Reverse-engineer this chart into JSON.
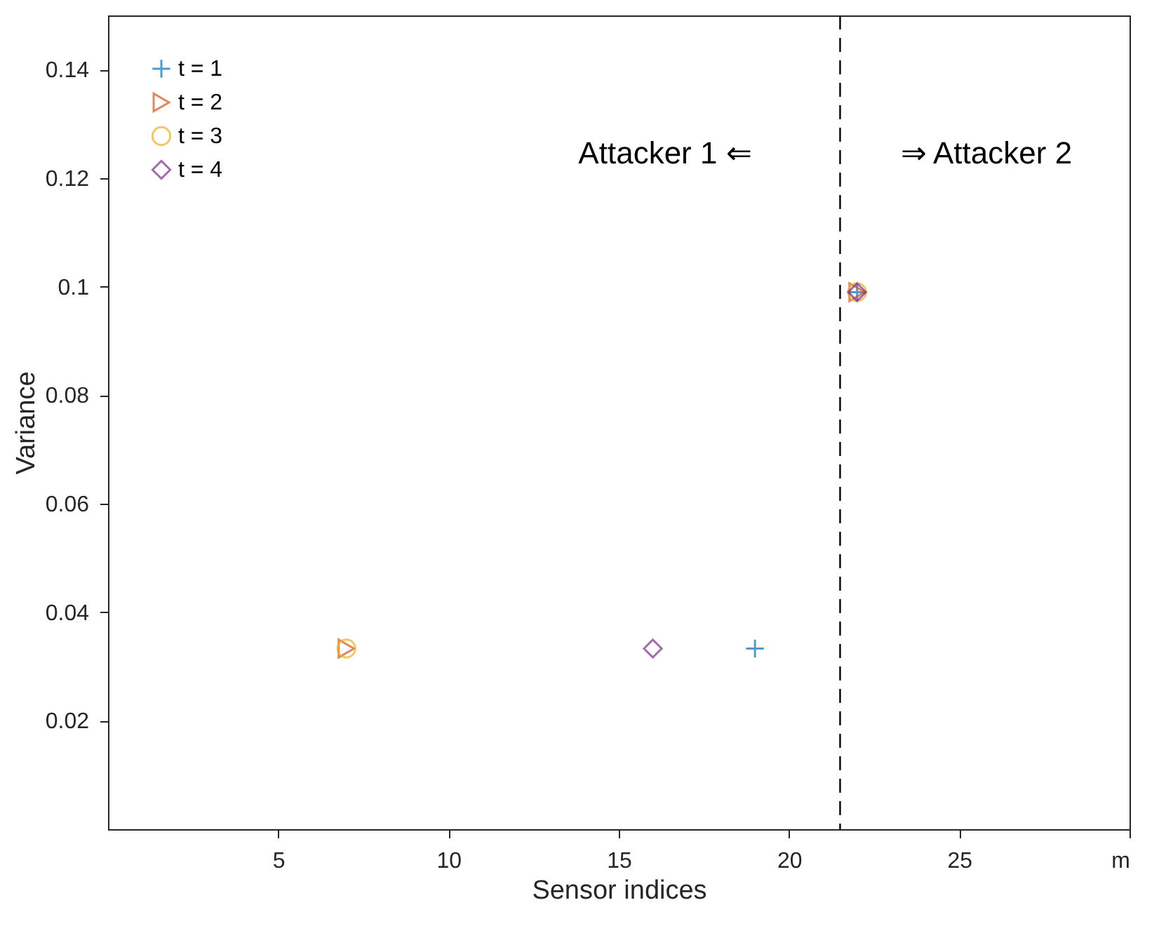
{
  "chart_data": {
    "type": "scatter",
    "xlabel": "Sensor indices",
    "ylabel": "Variance",
    "xlim": [
      0,
      30
    ],
    "ylim": [
      0,
      0.15
    ],
    "xticks": [
      5,
      10,
      15,
      20,
      25,
      {
        "value": 30,
        "label": "m"
      }
    ],
    "yticks": [
      0.02,
      0.04,
      0.06,
      0.08,
      {
        "value": 0.1,
        "label": "0.1"
      },
      0.12,
      0.14
    ],
    "grid": false,
    "legend": "top left",
    "series": [
      {
        "name": "t = 1",
        "color": "#0072bd",
        "marker": "cross",
        "x": [
          19,
          22
        ],
        "values": [
          0.0333,
          0.099
        ]
      },
      {
        "name": "t = 2",
        "color": "#d95319",
        "marker": "triangle",
        "x": [
          7,
          22
        ],
        "values": [
          0.0333,
          0.099
        ]
      },
      {
        "name": "t = 3",
        "color": "#edb120",
        "marker": "circle",
        "x": [
          7,
          22
        ],
        "values": [
          0.0333,
          0.099
        ]
      },
      {
        "name": "t = 4",
        "color": "#7e2f8e",
        "marker": "diamond",
        "x": [
          16,
          22
        ],
        "values": [
          0.0333,
          0.099
        ]
      }
    ],
    "ref_lines": [
      {
        "axis": "x",
        "value": 21.5,
        "color": "#000000",
        "line_style": "dashed"
      }
    ],
    "annotations": [
      "Attacker 1 ⇐",
      "⇒ Attacker 2"
    ]
  }
}
